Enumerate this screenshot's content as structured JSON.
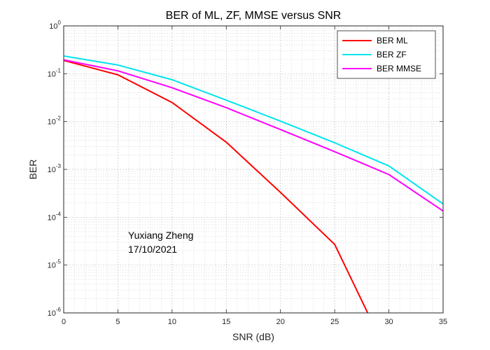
{
  "chart_data": {
    "type": "line",
    "title": "BER of ML, ZF, MMSE versus SNR",
    "xlabel": "SNR (dB)",
    "ylabel": "BER",
    "xlim": [
      0,
      35
    ],
    "ylim": [
      1e-06,
      1
    ],
    "yscale": "log",
    "grid": true,
    "minor_grid": true,
    "legend_position": "top-right",
    "x_ticks": [
      "0",
      "5",
      "10",
      "15",
      "20",
      "25",
      "30",
      "35"
    ],
    "y_ticks": [
      {
        "base": "10",
        "exp": "0"
      },
      {
        "base": "10",
        "exp": "-1"
      },
      {
        "base": "10",
        "exp": "-2"
      },
      {
        "base": "10",
        "exp": "-3"
      },
      {
        "base": "10",
        "exp": "-4"
      },
      {
        "base": "10",
        "exp": "-5"
      },
      {
        "base": "10",
        "exp": "-6"
      }
    ],
    "series": [
      {
        "name": "BER ML",
        "color": "#ff0000",
        "x": [
          0,
          5,
          10,
          15,
          20,
          25,
          30
        ],
        "y": [
          0.19,
          0.095,
          0.025,
          0.0037,
          0.00033,
          2.7e-05,
          1.2e-07
        ]
      },
      {
        "name": "BER ZF",
        "color": "#00e5ee",
        "x": [
          0,
          5,
          10,
          15,
          20,
          25,
          30,
          35
        ],
        "y": [
          0.235,
          0.152,
          0.075,
          0.028,
          0.0102,
          0.0036,
          0.00118,
          0.00019
        ]
      },
      {
        "name": "BER MMSE",
        "color": "#ff00ff",
        "x": [
          0,
          5,
          10,
          15,
          20,
          25,
          30,
          35
        ],
        "y": [
          0.195,
          0.115,
          0.051,
          0.0195,
          0.0068,
          0.00235,
          0.00078,
          0.000135
        ]
      }
    ],
    "annotations": [
      "Yuxiang Zheng",
      "17/10/2021"
    ]
  }
}
